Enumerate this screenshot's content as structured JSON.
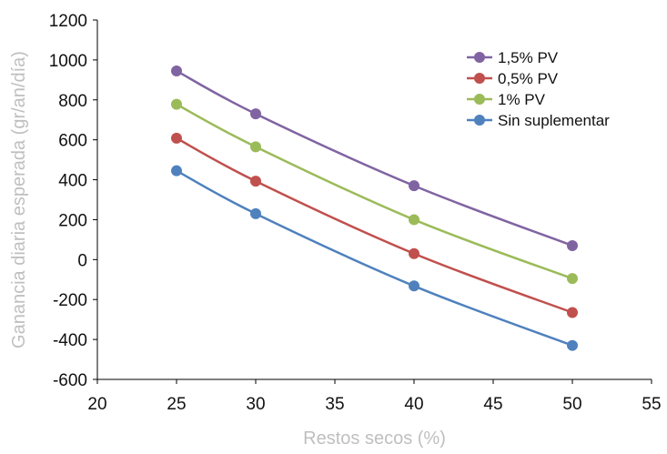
{
  "chart_data": {
    "type": "line",
    "title": "",
    "xlabel": "Restos secos (%)",
    "ylabel": "Ganancia diaria esperada (gr/an/día)",
    "xlim": [
      20,
      55
    ],
    "ylim": [
      -600,
      1200
    ],
    "xticks": [
      "20",
      "25",
      "30",
      "35",
      "40",
      "45",
      "50",
      "55"
    ],
    "yticks": [
      "-600",
      "-400",
      "-200",
      "0",
      "200",
      "400",
      "600",
      "800",
      "1000",
      "1200"
    ],
    "grid": false,
    "legend_position": "top-right",
    "smooth": true,
    "series": [
      {
        "name": "1,5% PV",
        "color": "#8064a2",
        "x": [
          25,
          30,
          40,
          50
        ],
        "y": [
          945,
          730,
          370,
          70
        ]
      },
      {
        "name": "0,5% PV",
        "color": "#c0504d",
        "x": [
          25,
          30,
          40,
          50
        ],
        "y": [
          608,
          393,
          30,
          -265
        ]
      },
      {
        "name": "1% PV",
        "color": "#9bbb59",
        "x": [
          25,
          30,
          40,
          50
        ],
        "y": [
          778,
          565,
          200,
          -95
        ]
      },
      {
        "name": "Sin suplementar",
        "color": "#4f81bd",
        "x": [
          25,
          30,
          40,
          50
        ],
        "y": [
          445,
          230,
          -132,
          -430
        ]
      }
    ]
  }
}
